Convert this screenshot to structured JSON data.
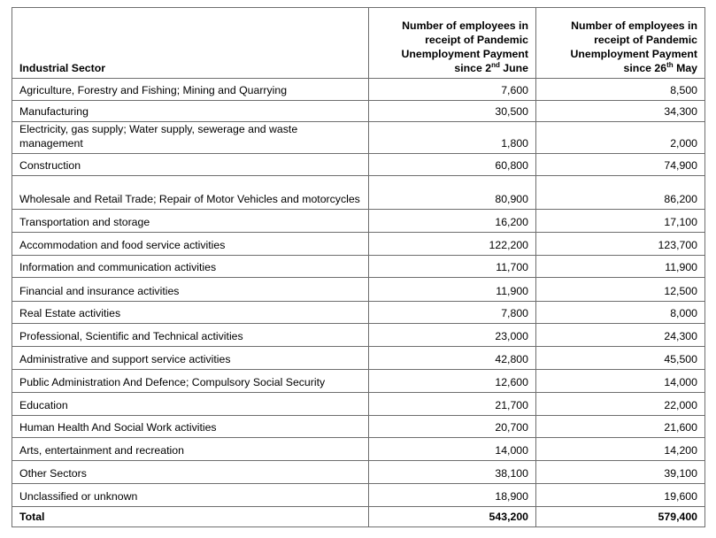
{
  "header": {
    "sector": "Industrial Sector",
    "col1": {
      "text": "Number of employees in receipt of Pandemic Unemployment Payment since 2",
      "sup": "nd",
      "after": " June"
    },
    "col2": {
      "text": "Number of employees in receipt of Pandemic Unemployment Payment since  26",
      "sup": "th",
      "after": " May"
    }
  },
  "rows": [
    {
      "sector": "Agriculture, Forestry and Fishing; Mining and Quarrying",
      "june": "7,600",
      "may": "8,500"
    },
    {
      "sector": "Manufacturing",
      "june": "30,500",
      "may": "34,300"
    },
    {
      "sector": "Electricity, gas supply; Water supply, sewerage and waste management",
      "june": "1,800",
      "may": "2,000"
    },
    {
      "sector": "Construction",
      "june": "60,800",
      "may": "74,900"
    },
    {
      "sector": "Wholesale and Retail Trade; Repair of Motor Vehicles and motorcycles",
      "june": "80,900",
      "may": "86,200"
    },
    {
      "sector": "Transportation and storage",
      "june": "16,200",
      "may": "17,100"
    },
    {
      "sector": "Accommodation and food service activities",
      "june": "122,200",
      "may": "123,700"
    },
    {
      "sector": "Information and communication activities",
      "june": "11,700",
      "may": "11,900"
    },
    {
      "sector": "Financial and insurance activities",
      "june": "11,900",
      "may": "12,500"
    },
    {
      "sector": "Real Estate activities",
      "june": "7,800",
      "may": "8,000"
    },
    {
      "sector": "Professional, Scientific and Technical activities",
      "june": "23,000",
      "may": "24,300"
    },
    {
      "sector": "Administrative and support service activities",
      "june": "42,800",
      "may": "45,500"
    },
    {
      "sector": "Public Administration And Defence; Compulsory Social Security",
      "june": "12,600",
      "may": "14,000"
    },
    {
      "sector": "Education",
      "june": "21,700",
      "may": "22,000"
    },
    {
      "sector": "Human Health And Social Work activities",
      "june": "20,700",
      "may": "21,600"
    },
    {
      "sector": "Arts, entertainment and recreation",
      "june": "14,000",
      "may": "14,200"
    },
    {
      "sector": "Other Sectors",
      "june": "38,100",
      "may": "39,100"
    },
    {
      "sector": "Unclassified or unknown",
      "june": "18,900",
      "may": "19,600"
    }
  ],
  "total": {
    "sector": "Total",
    "june": "543,200",
    "may": "579,400"
  }
}
